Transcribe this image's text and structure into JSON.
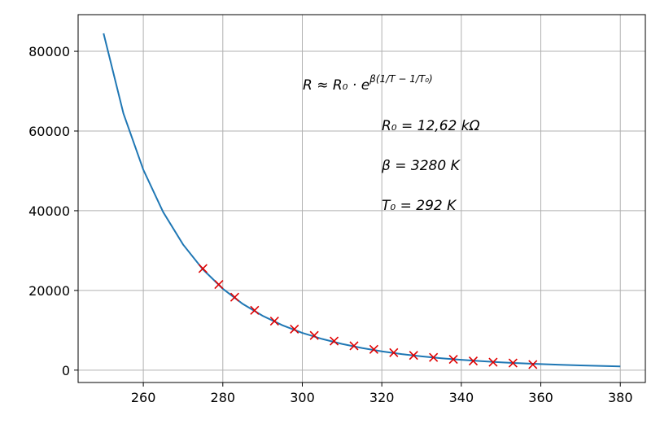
{
  "chart_data": {
    "type": "line",
    "series": [
      {
        "color": "#1f77b4",
        "style": "line",
        "x": [
          250,
          255,
          260,
          265,
          270,
          275,
          280,
          285,
          290,
          295,
          300,
          305,
          310,
          315,
          320,
          325,
          330,
          335,
          340,
          345,
          350,
          355,
          360,
          365,
          370,
          375,
          380
        ],
        "values": [
          84500,
          64400,
          50290,
          39640,
          31520,
          25270,
          20420,
          16630,
          13640,
          11260,
          9350,
          7820,
          6570,
          5560,
          4720,
          4030,
          3460,
          2980,
          2580,
          2250,
          1960,
          1720,
          1510,
          1340,
          1180,
          1050,
          940
        ]
      },
      {
        "color": "#e00000",
        "style": "marker",
        "marker": "x",
        "x": [
          275,
          279,
          283,
          288,
          293,
          298,
          303,
          308,
          313,
          318,
          323,
          328,
          333,
          338,
          343,
          348,
          353,
          358
        ],
        "values": [
          25500,
          21500,
          18300,
          15000,
          12300,
          10300,
          8700,
          7300,
          6100,
          5200,
          4400,
          3700,
          3200,
          2700,
          2300,
          2000,
          1800,
          1400
        ]
      }
    ],
    "xlim": [
      243.6,
      386.3
    ],
    "xticks": [
      260,
      280,
      300,
      320,
      340,
      360,
      380
    ],
    "ylim": [
      -3100,
      89200
    ],
    "yticks": [
      0,
      20000,
      40000,
      60000,
      80000
    ],
    "grid": true,
    "annotations": [
      {
        "base": "R ≈ R₀ · e",
        "exponent": "β(1/T − 1/T₀)"
      },
      {
        "text": "R₀ = 12,62 kΩ"
      },
      {
        "text": "β = 3280 K"
      },
      {
        "text": "T₀ = 292 K"
      }
    ]
  }
}
